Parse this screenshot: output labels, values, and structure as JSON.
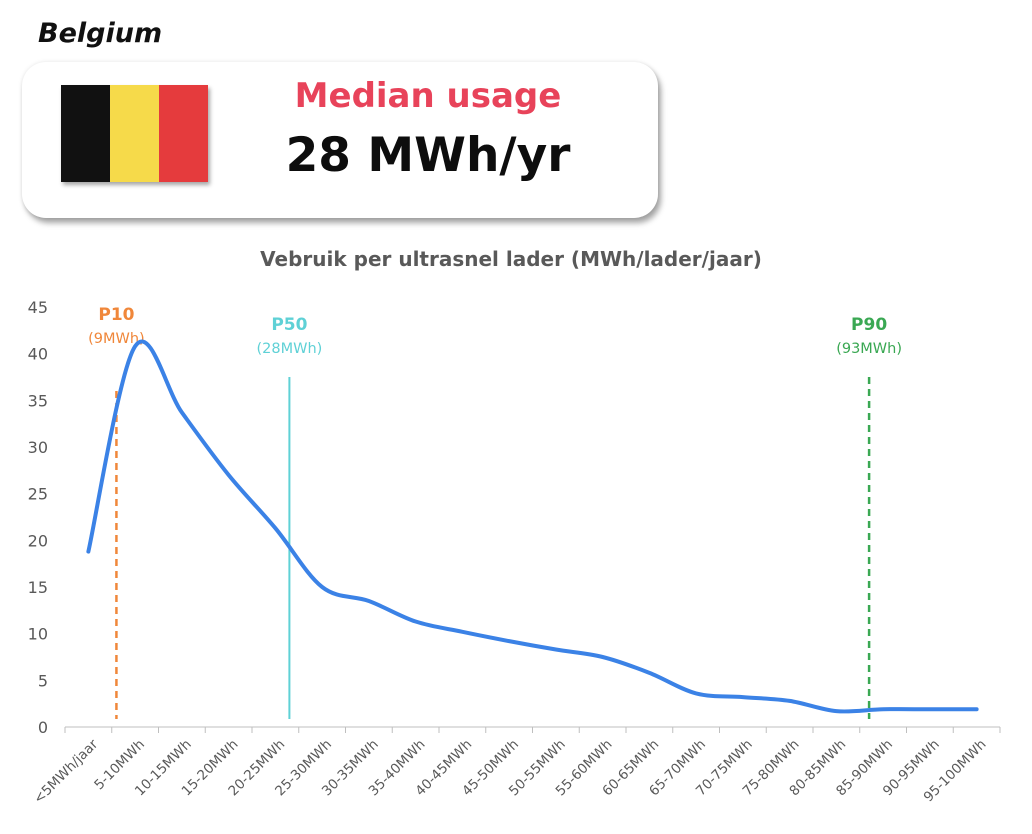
{
  "country": "Belgium",
  "flag": {
    "name": "belgium-flag",
    "colors": [
      "#111111",
      "#f6da4a",
      "#e53b3d"
    ]
  },
  "median": {
    "label": "Median usage",
    "value": "28 MWh/yr",
    "label_color": "#e8435a"
  },
  "chart_data": {
    "type": "line",
    "title": "Vebruik per ultrasnel lader (MWh/lader/jaar)",
    "xlabel": "",
    "ylabel": "",
    "ylim": [
      0,
      45
    ],
    "yticks": [
      0,
      5,
      10,
      15,
      20,
      25,
      30,
      35,
      40,
      45
    ],
    "grid": false,
    "categories": [
      "<5MWh/jaar",
      "5-10MWh",
      "10-15MWh",
      "15-20MWh",
      "20-25MWh",
      "25-30MWh",
      "30-35MWh",
      "35-40MWh",
      "40-45MWh",
      "45-50MWh",
      "50-55MWh",
      "55-60MWh",
      "60-65MWh",
      "65-70MWh",
      "70-75MWh",
      "75-80MWh",
      "80-85MWh",
      "85-90MWh",
      "90-95MWh",
      "95-100MWh"
    ],
    "series": [
      {
        "color": "#3b82e6",
        "values": [
          18.8,
          40.8,
          33.7,
          27.0,
          21.3,
          15.0,
          13.5,
          11.3,
          10.2,
          9.2,
          8.3,
          7.5,
          5.8,
          3.6,
          3.2,
          2.8,
          1.7,
          1.9,
          1.9,
          1.9
        ]
      }
    ],
    "reference_lines": [
      {
        "label": "P10",
        "sublabel": "(9MWh)",
        "x": 0.6,
        "color": "#f0873a",
        "style": "dashed",
        "y_top": 36
      },
      {
        "label": "P50",
        "sublabel": "(28MWh)",
        "x": 4.3,
        "color": "#5fd1d6",
        "style": "solid",
        "y_top": 37.5
      },
      {
        "label": "P90",
        "sublabel": "(93MWh)",
        "x": 16.7,
        "color": "#3aa853",
        "style": "dashed",
        "y_top": 37.5
      }
    ],
    "axis_color": "#bfbfbf",
    "label_color": "#595959"
  }
}
